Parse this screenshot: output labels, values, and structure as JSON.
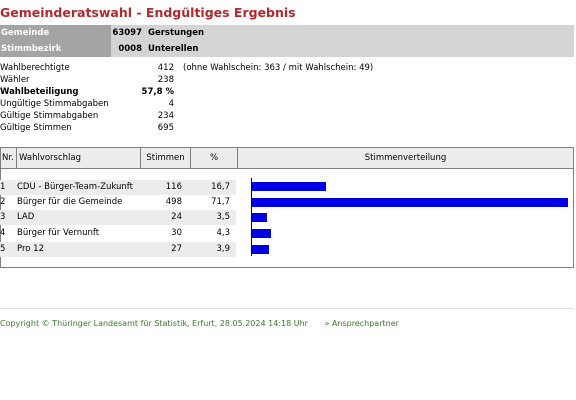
{
  "title": "Gemeinderatswahl - Endgültiges Ergebnis",
  "gemeinde": {
    "label": "Gemeinde",
    "number": "63097",
    "name": "Gerstungen"
  },
  "stimmbezirk": {
    "label": "Stimmbezirk",
    "number": "0008",
    "name": "Unterellen"
  },
  "stats": [
    {
      "label": "Wahlberechtigte",
      "value": "412",
      "note": "(ohne Wahlschein: 363 / mit Wahlschein: 49)",
      "bold": false
    },
    {
      "label": "Wähler",
      "value": "238",
      "note": "",
      "bold": false
    },
    {
      "label": "Wahlbeteiligung",
      "value": "57,8 %",
      "note": "",
      "bold": true
    },
    {
      "label": "Ungültige Stimmabgaben",
      "value": "4",
      "note": "",
      "bold": false
    },
    {
      "label": "Gültige Stimmabgaben",
      "value": "234",
      "note": "",
      "bold": false
    },
    {
      "label": "Gültige Stimmen",
      "value": "695",
      "note": "",
      "bold": false
    }
  ],
  "table": {
    "headers": {
      "nr": "Nr.",
      "wahlvorschlag": "Wahlvorschlag",
      "stimmen": "Stimmen",
      "prozent": "%",
      "verteilung": "Stimmenverteilung"
    },
    "rows": [
      {
        "nr": "1",
        "name": "CDU - Bürger-Team-Zukunft",
        "stimmen": "116",
        "prozent": "16,7",
        "pct": 16.7
      },
      {
        "nr": "2",
        "name": "Bürger für die Gemeinde",
        "stimmen": "498",
        "prozent": "71,7",
        "pct": 71.7
      },
      {
        "nr": "3",
        "name": "LAD",
        "stimmen": "24",
        "prozent": "3,5",
        "pct": 3.5
      },
      {
        "nr": "4",
        "name": "Bürger für Vernunft",
        "stimmen": "30",
        "prozent": "4,3",
        "pct": 4.3
      },
      {
        "nr": "5",
        "name": "Pro 12",
        "stimmen": "27",
        "prozent": "3,9",
        "pct": 3.9
      }
    ]
  },
  "colors": {
    "title": "#b4282c",
    "bar": "#0000e6",
    "footer": "#3a7a2a"
  },
  "footer": {
    "copyright": "Copyright © Thüringer Landesamt für Statistik, Erfurt, 28.05.2024 14:18 Uhr",
    "link": "» Ansprechpartner"
  }
}
